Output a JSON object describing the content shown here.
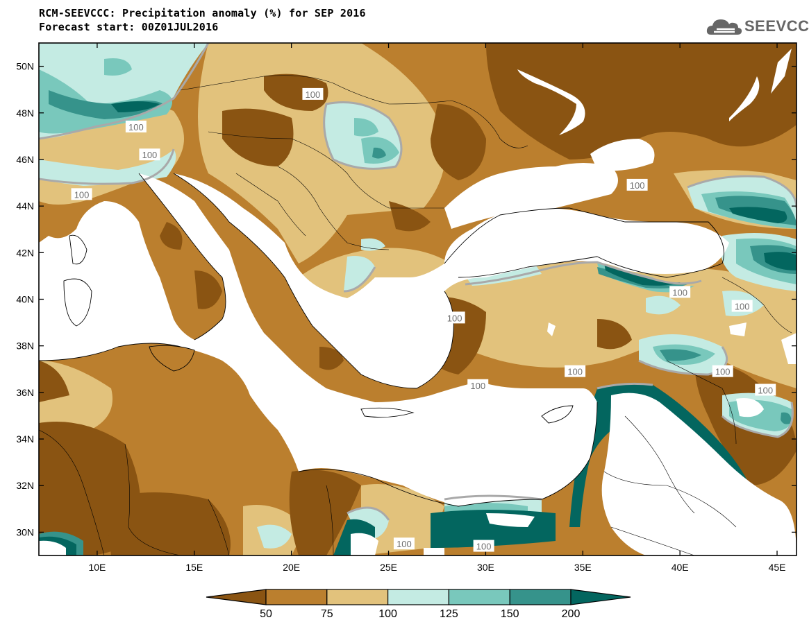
{
  "header": {
    "title": "RCM-SEEVCCC: Precipitation anomaly (%) for SEP 2016",
    "subtitle": "Forecast start: 00Z01JUL2016",
    "logo_text": "SEEVCCC"
  },
  "map": {
    "projection": "lat-lon",
    "lon_range": [
      7,
      46
    ],
    "lat_range": [
      29,
      51
    ],
    "lat_ticks": [
      {
        "value": 30,
        "label": "30N"
      },
      {
        "value": 32,
        "label": "32N"
      },
      {
        "value": 34,
        "label": "34N"
      },
      {
        "value": 36,
        "label": "36N"
      },
      {
        "value": 38,
        "label": "38N"
      },
      {
        "value": 40,
        "label": "40N"
      },
      {
        "value": 42,
        "label": "42N"
      },
      {
        "value": 44,
        "label": "44N"
      },
      {
        "value": 46,
        "label": "46N"
      },
      {
        "value": 48,
        "label": "48N"
      },
      {
        "value": 50,
        "label": "50N"
      }
    ],
    "lon_ticks": [
      {
        "value": 10,
        "label": "10E"
      },
      {
        "value": 15,
        "label": "15E"
      },
      {
        "value": 20,
        "label": "20E"
      },
      {
        "value": 25,
        "label": "25E"
      },
      {
        "value": 30,
        "label": "30E"
      },
      {
        "value": 35,
        "label": "35E"
      },
      {
        "value": 40,
        "label": "40E"
      },
      {
        "value": 45,
        "label": "45E"
      }
    ],
    "contour_label": "100",
    "contour_labels": [
      {
        "lon": 21.1,
        "lat": 48.8
      },
      {
        "lon": 12.0,
        "lat": 47.4
      },
      {
        "lon": 12.7,
        "lat": 46.2
      },
      {
        "lon": 9.2,
        "lat": 44.5
      },
      {
        "lon": 28.4,
        "lat": 39.2
      },
      {
        "lon": 40.0,
        "lat": 40.3
      },
      {
        "lon": 43.2,
        "lat": 39.7
      },
      {
        "lon": 37.8,
        "lat": 44.9
      },
      {
        "lon": 34.6,
        "lat": 36.9
      },
      {
        "lon": 29.6,
        "lat": 36.3
      },
      {
        "lon": 42.2,
        "lat": 36.9
      },
      {
        "lon": 44.4,
        "lat": 36.1
      },
      {
        "lon": 25.8,
        "lat": 29.5
      },
      {
        "lon": 29.9,
        "lat": 29.4
      }
    ]
  },
  "colorbar": {
    "labels": [
      "50",
      "75",
      "100",
      "125",
      "150",
      "200"
    ],
    "colors": [
      "#8a5412",
      "#bb7f2e",
      "#e2c27c",
      "#c4ebe3",
      "#79c8bc",
      "#36938b",
      "#03665f"
    ]
  },
  "fill_colors": {
    "land_dry2": "#8a5412",
    "land_dry1": "#bb7f2e",
    "land_dry0": "#e2c27c",
    "wet1": "#c4ebe3",
    "wet2": "#79c8bc",
    "wet3": "#36938b",
    "wet4": "#03665f",
    "sea": "#ffffff",
    "contour": "#a9a9a9"
  }
}
